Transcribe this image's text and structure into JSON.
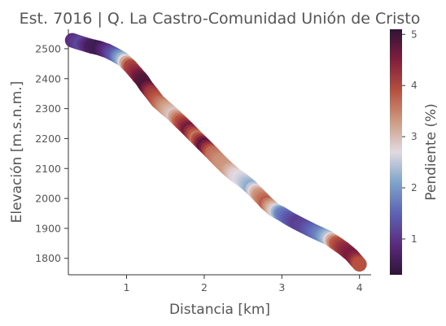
{
  "chart_data": {
    "type": "scatter",
    "title": "Est. 7016 | Q. La Castro-Comunidad Unión de Cristo",
    "xlabel": "Distancia [km]",
    "ylabel": "Elevación [m.s.n.m.]",
    "colorbar_label": "Pendiente (%)",
    "xlim": [
      0.25,
      4.15
    ],
    "ylim": [
      1745,
      2565
    ],
    "clim": [
      0.3,
      5.1
    ],
    "xticks": [
      "1",
      "2",
      "3",
      "4"
    ],
    "yticks": [
      "1800",
      "1900",
      "2000",
      "2100",
      "2200",
      "2300",
      "2400",
      "2500"
    ],
    "cticks": [
      "1",
      "2",
      "3",
      "4",
      "5"
    ],
    "grid": false,
    "colormap": "twilight_shifted",
    "series": [
      {
        "x": [
          0.3,
          0.42,
          0.55,
          0.65,
          0.75,
          0.85,
          0.95,
          1.05,
          1.15,
          1.2,
          1.25,
          1.32,
          1.4,
          1.5,
          1.6,
          1.7,
          1.8,
          1.9,
          2.0,
          2.1,
          2.2,
          2.3,
          2.4,
          2.5,
          2.6,
          2.7,
          2.8,
          2.9,
          3.0,
          3.1,
          3.2,
          3.3,
          3.4,
          3.5,
          3.6,
          3.7,
          3.8,
          3.9,
          3.95,
          4.0
        ],
        "y": [
          2528,
          2518,
          2508,
          2502,
          2493,
          2480,
          2465,
          2440,
          2410,
          2395,
          2375,
          2352,
          2325,
          2302,
          2280,
          2255,
          2230,
          2203,
          2178,
          2152,
          2125,
          2100,
          2078,
          2060,
          2038,
          2012,
          1985,
          1962,
          1948,
          1932,
          1918,
          1905,
          1892,
          1880,
          1868,
          1850,
          1832,
          1810,
          1795,
          1780
        ],
        "pendiente": [
          0.9,
          1.2,
          0.6,
          0.5,
          0.9,
          1.4,
          2.3,
          4.0,
          4.5,
          4.8,
          4.9,
          4.2,
          3.8,
          3.3,
          2.9,
          3.9,
          4.6,
          3.6,
          4.8,
          3.7,
          3.4,
          3.3,
          2.8,
          2.6,
          2.2,
          3.3,
          3.8,
          2.9,
          1.8,
          1.4,
          1.1,
          1.2,
          1.5,
          1.8,
          2.4,
          3.8,
          4.3,
          4.6,
          4.4,
          3.9
        ]
      }
    ]
  }
}
